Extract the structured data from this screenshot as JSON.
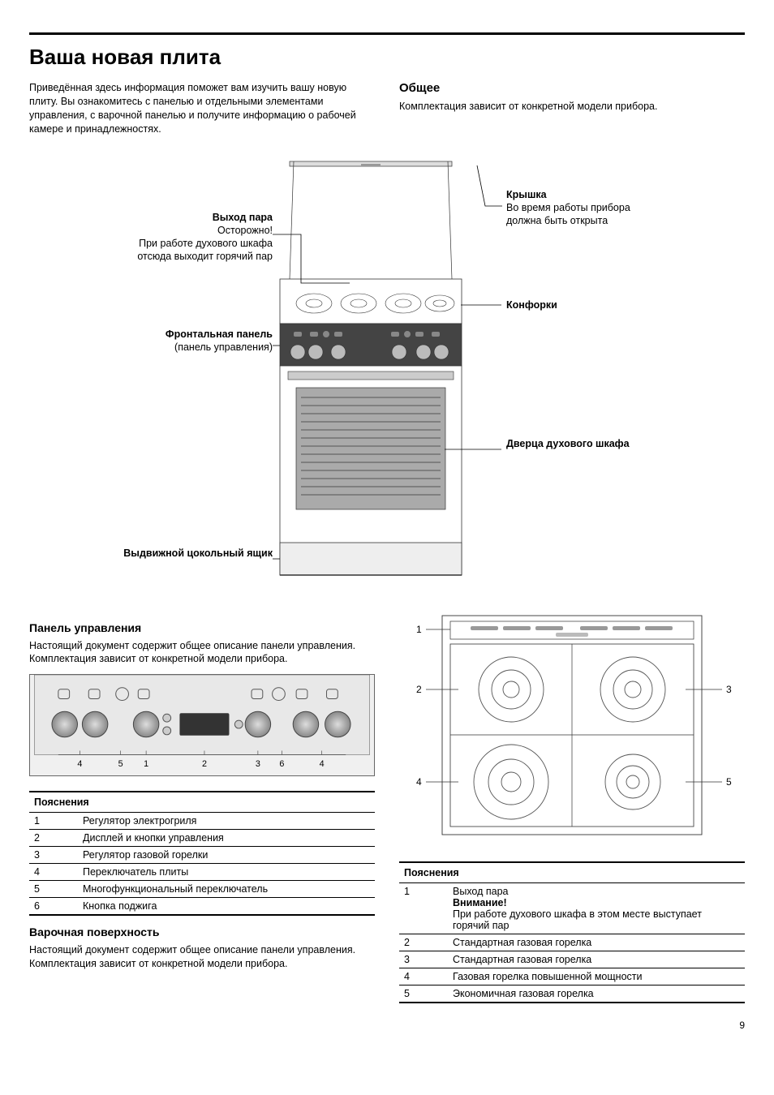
{
  "page_number": "9",
  "heading": "Ваша новая плита",
  "intro_paragraph": "Приведённая здесь информация поможет вам изучить вашу новую плиту. Вы ознакомитесь с панелью и отдельными элементами управления, с варочной панелью и получите информацию о рабочей камере и принадлежностях.",
  "general": {
    "title": "Общее",
    "text": "Комплектация зависит от конкретной модели прибора."
  },
  "stove_callouts": {
    "steam_title": "Выход пара",
    "steam_body": "Осторожно!\nПри работе духового шкафа отсюда выходит горячий пар",
    "front_title": "Фронтальная панель",
    "front_body": "(панель управления)",
    "drawer_title": "Выдвижной цокольный ящик",
    "lid_title": "Крышка",
    "lid_body": "Во время работы прибора должна быть открыта",
    "burners_title": "Конфорки",
    "door_title": "Дверца духового шкафа"
  },
  "control_panel": {
    "title": "Панель управления",
    "text": "Настоящий документ содержит общее описание панели управления. Комплектация зависит от конкретной модели прибора.",
    "legend_title": "Пояснения",
    "numbers_below": [
      "4",
      "5",
      "1",
      "2",
      "3",
      "6",
      "4"
    ],
    "rows": [
      {
        "n": "1",
        "label": "Регулятор электрогриля"
      },
      {
        "n": "2",
        "label": "Дисплей и кнопки управления"
      },
      {
        "n": "3",
        "label": "Регулятор газовой горелки"
      },
      {
        "n": "4",
        "label": "Переключатель плиты"
      },
      {
        "n": "5",
        "label": "Многофункциональный переключатель"
      },
      {
        "n": "6",
        "label": "Кнопка поджига"
      }
    ]
  },
  "hob": {
    "title": "Варочная поверхность",
    "text": "Настоящий документ содержит общее описание панели управления. Комплектация зависит от конкретной модели прибора.",
    "legend_title": "Пояснения",
    "side_numbers": {
      "l1": "1",
      "l2": "2",
      "l3": "4",
      "r1": "3",
      "r2": "5"
    },
    "rows": [
      {
        "n": "1",
        "label": "Выход пара",
        "warn_title": "Внимание!",
        "warn_body": "При работе духового шкафа в этом месте выступает горячий пар"
      },
      {
        "n": "2",
        "label": "Стандартная газовая горелка"
      },
      {
        "n": "3",
        "label": "Стандартная газовая горелка"
      },
      {
        "n": "4",
        "label": "Газовая горелка повышенной мощности"
      },
      {
        "n": "5",
        "label": "Экономичная газовая горелка"
      }
    ]
  }
}
